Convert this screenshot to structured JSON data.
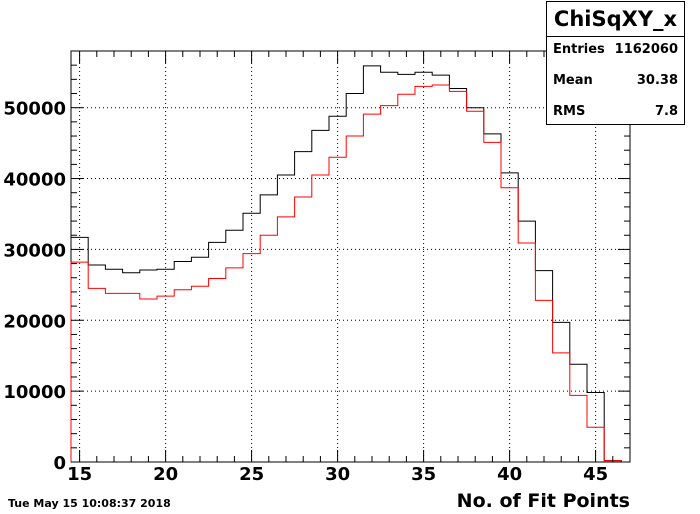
{
  "chart_data": {
    "type": "histogram",
    "title": "",
    "xlabel": "No. of Fit Points",
    "ylabel": "",
    "xlim": [
      14.5,
      47
    ],
    "ylim": [
      0,
      58000
    ],
    "x_ticks": [
      15,
      20,
      25,
      30,
      35,
      40,
      45
    ],
    "y_ticks": [
      0,
      10000,
      20000,
      30000,
      40000,
      50000
    ],
    "bin_edges": [
      14.5,
      15.5,
      16.5,
      17.5,
      18.5,
      19.5,
      20.5,
      21.5,
      22.5,
      23.5,
      24.5,
      25.5,
      26.5,
      27.5,
      28.5,
      29.5,
      30.5,
      31.5,
      32.5,
      33.5,
      34.5,
      35.5,
      36.5,
      37.5,
      38.5,
      39.5,
      40.5,
      41.5,
      42.5,
      43.5,
      44.5,
      45.5,
      46.5
    ],
    "grid": true,
    "series": [
      {
        "color": "#000000",
        "values": [
          31700,
          27800,
          27200,
          26700,
          27100,
          27200,
          28300,
          28900,
          31000,
          32700,
          35100,
          37700,
          40500,
          43800,
          46800,
          48800,
          52000,
          55900,
          55000,
          54700,
          55000,
          54600,
          52700,
          50000,
          46300,
          40800,
          34000,
          27000,
          19700,
          13800,
          9800,
          200
        ]
      },
      {
        "color": "#ff0000",
        "values": [
          28200,
          24500,
          23800,
          23800,
          23000,
          23400,
          24300,
          24800,
          25900,
          27400,
          29400,
          32000,
          34600,
          37400,
          40500,
          43000,
          46000,
          49100,
          50300,
          51900,
          53000,
          53200,
          52300,
          49500,
          45100,
          38700,
          30900,
          22800,
          15400,
          9400,
          4900,
          200
        ]
      }
    ]
  },
  "stats": {
    "title": "ChiSqXY_x",
    "entries_label": "Entries",
    "entries_value": "1162060",
    "mean_label": "Mean",
    "mean_value": "30.38",
    "rms_label": "RMS",
    "rms_value": "7.8"
  },
  "timestamp": "Tue May 15 10:08:37 2018"
}
